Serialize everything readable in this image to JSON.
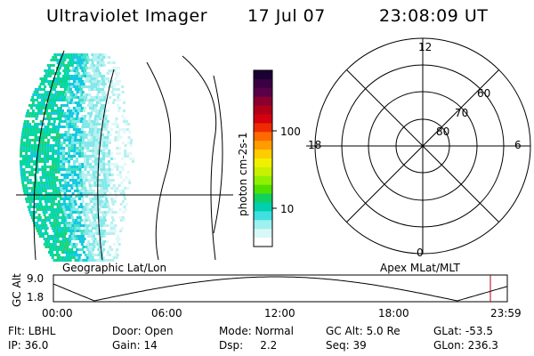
{
  "header": {
    "title": "Ultraviolet Imager",
    "date": "17 Jul 07",
    "time": "23:08:09 UT"
  },
  "colorbar": {
    "unit_label": "photon cm-2s-1",
    "ticks": [
      "100",
      "10"
    ],
    "colors": [
      "#1a0033",
      "#3a0044",
      "#5a0048",
      "#8a0030",
      "#b00018",
      "#d40010",
      "#ee2a00",
      "#ff6a00",
      "#ff9c00",
      "#ffcc00",
      "#f0f000",
      "#c8f000",
      "#90f000",
      "#50e000",
      "#10d060",
      "#00d0b0",
      "#40e0e0",
      "#9ff0f0",
      "#d8f8f8",
      "#ffffff"
    ]
  },
  "geo_map": {
    "caption": "Geographic Lat/Lon",
    "aurora_colors": [
      "#00d8a0",
      "#10c8e0",
      "#40e0c0",
      "#80e8e8",
      "#b8f0f0",
      "#dff8f8",
      "#20d070"
    ]
  },
  "polar_plot": {
    "caption": "Apex MLat/MLT",
    "mlt_labels": {
      "top": "12",
      "left": "18",
      "right": "6",
      "bottom": "0"
    },
    "lat_labels": [
      "60",
      "70",
      "80"
    ]
  },
  "altitude_plot": {
    "ylabel": "GC Alt",
    "y_ticks": [
      "9.0",
      "1.8"
    ],
    "x_ticks": [
      "00:00",
      "06:00",
      "12:00",
      "18:00",
      "23:59"
    ],
    "marker_color": "#b00020"
  },
  "status": {
    "row1": [
      {
        "label": "Flt: LBHL"
      },
      {
        "label": "Door: Open"
      },
      {
        "label": "Mode: Normal"
      },
      {
        "label": "GC Alt: 5.0 Re"
      },
      {
        "label": "GLat: -53.5"
      }
    ],
    "row2": [
      {
        "label": "IP: 36.0"
      },
      {
        "label": "Gain: 14"
      },
      {
        "label": "Dsp:     2.2"
      },
      {
        "label": "Seq: 39"
      },
      {
        "label": "GLon: 236.3"
      }
    ]
  }
}
